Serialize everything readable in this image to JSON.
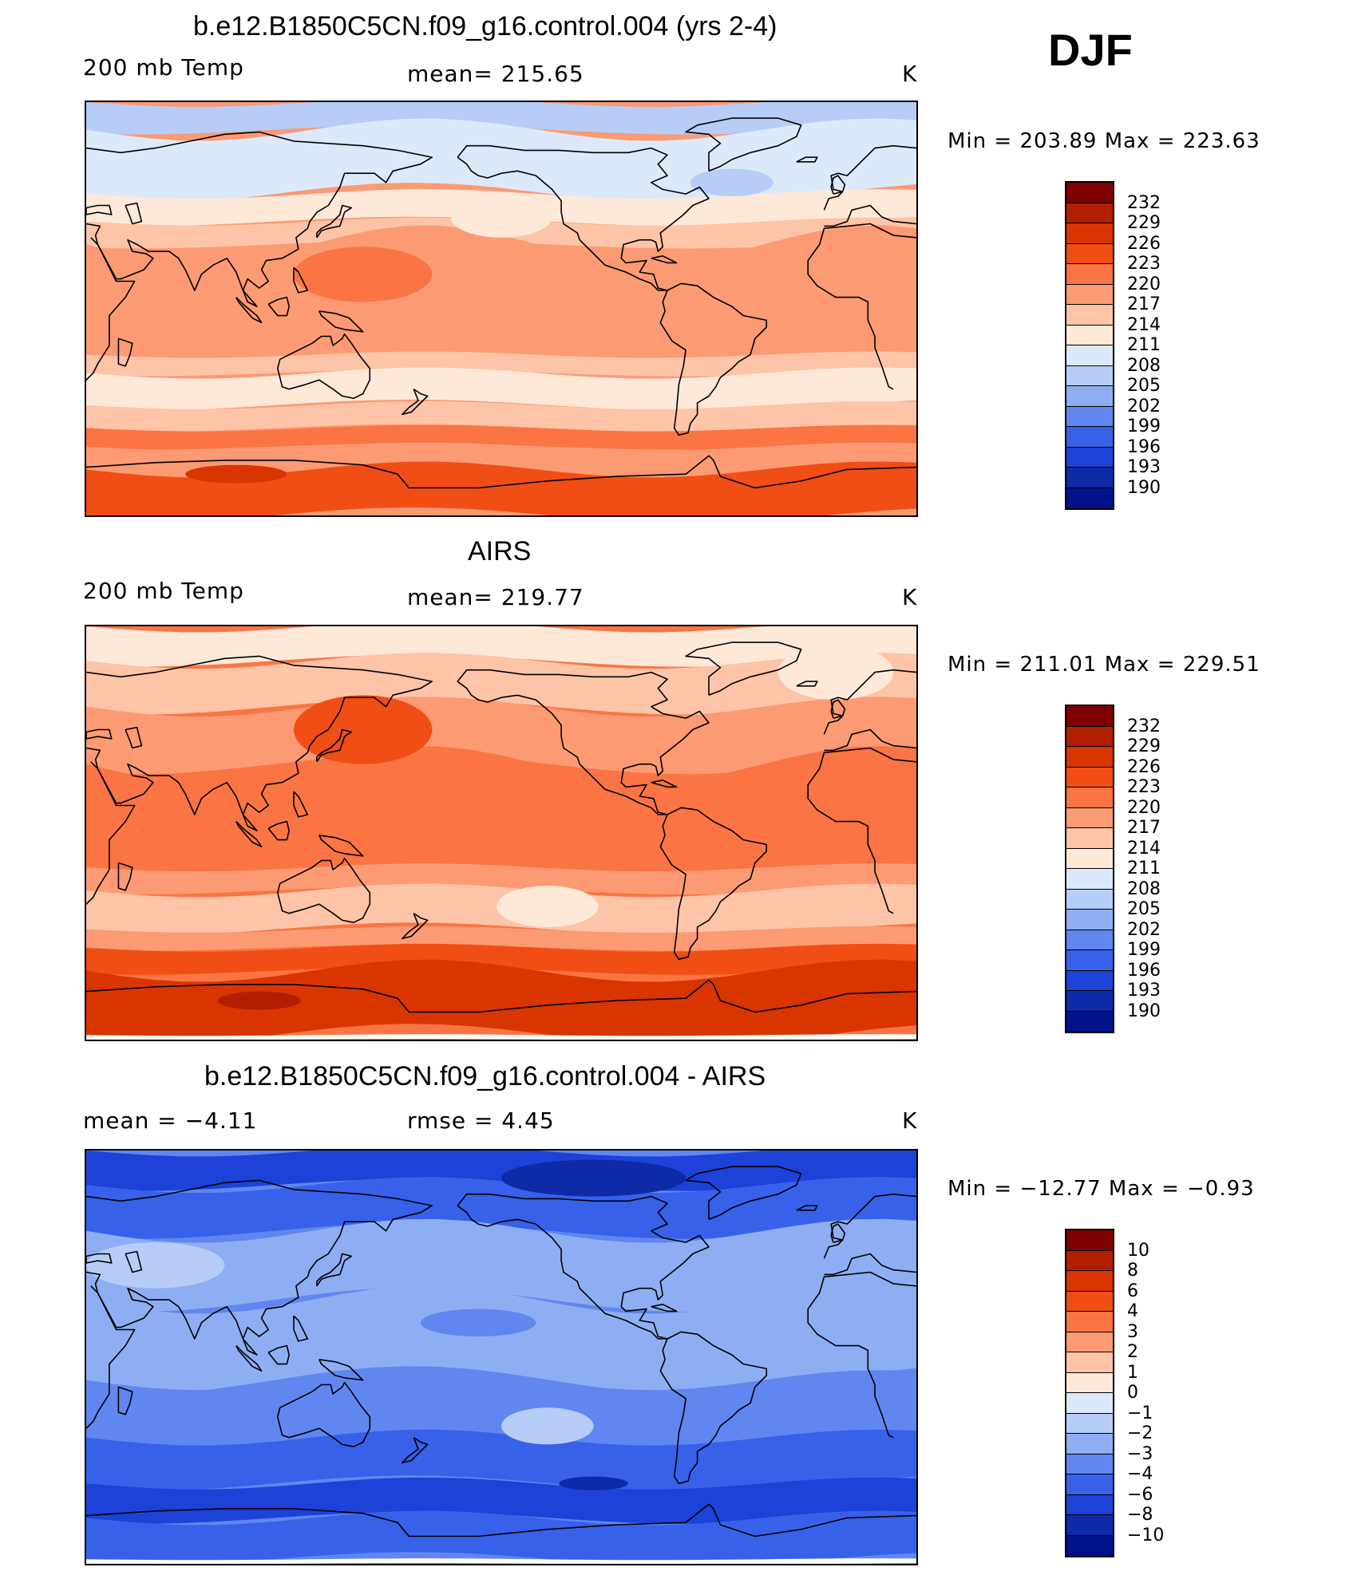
{
  "season": "DJF",
  "panels": [
    {
      "title": "b.e12.B1850C5CN.f09_g16.control.004 (yrs 2-4)",
      "left_label": "200 mb Temp",
      "center_label": "mean=  215.65",
      "units": "K",
      "minmax": "Min  =  203.89  Max  =  223.63",
      "colorbar": {
        "ticks": [
          "232",
          "229",
          "226",
          "223",
          "220",
          "217",
          "214",
          "211",
          "208",
          "205",
          "202",
          "199",
          "196",
          "193",
          "190"
        ],
        "colors": [
          "#7f0000",
          "#b21f00",
          "#d93500",
          "#f04e14",
          "#fa7543",
          "#fc9a74",
          "#fec4a8",
          "#fee9d9",
          "#dbe9fb",
          "#b7cdf7",
          "#8eaef3",
          "#6087ef",
          "#3861ea",
          "#1c42d8",
          "#0e2aa6",
          "#00128a"
        ]
      }
    },
    {
      "title": "AIRS",
      "left_label": "200 mb Temp",
      "center_label": "mean=  219.77",
      "units": "K",
      "minmax": "Min  =  211.01  Max  =  229.51",
      "colorbar": {
        "ticks": [
          "232",
          "229",
          "226",
          "223",
          "220",
          "217",
          "214",
          "211",
          "208",
          "205",
          "202",
          "199",
          "196",
          "193",
          "190"
        ],
        "colors": [
          "#7f0000",
          "#b21f00",
          "#d93500",
          "#f04e14",
          "#fa7543",
          "#fc9a74",
          "#fec4a8",
          "#fee9d9",
          "#dbe9fb",
          "#b7cdf7",
          "#8eaef3",
          "#6087ef",
          "#3861ea",
          "#1c42d8",
          "#0e2aa6",
          "#00128a"
        ]
      }
    },
    {
      "title": "b.e12.B1850C5CN.f09_g16.control.004 - AIRS",
      "left_label": "mean  =    −4.11",
      "center_label": "rmse  =     4.45",
      "units": "K",
      "minmax": "Min  =  −12.77  Max  =   −0.93",
      "colorbar": {
        "ticks": [
          "10",
          "8",
          "6",
          "4",
          "3",
          "2",
          "1",
          "0",
          "−1",
          "−2",
          "−3",
          "−4",
          "−6",
          "−8",
          "−10"
        ],
        "colors": [
          "#7f0000",
          "#b21f00",
          "#d93500",
          "#f04e14",
          "#fa7543",
          "#fc9a74",
          "#fec4a8",
          "#fee9d9",
          "#dbe9fb",
          "#b7cdf7",
          "#8eaef3",
          "#6087ef",
          "#3861ea",
          "#1c42d8",
          "#0e2aa6",
          "#00128a"
        ]
      }
    }
  ],
  "fields": {
    "model": {
      "background": "#fc9a74",
      "bands": [
        {
          "lat_top": 90,
          "lat_bottom": 78,
          "color": "#b7cdf7"
        },
        {
          "lat_top": 78,
          "lat_bottom": 50,
          "color": "#dbe9fb"
        },
        {
          "lat_top": 50,
          "lat_bottom": 38,
          "color": "#fee9d9"
        },
        {
          "lat_top": 38,
          "lat_bottom": 28,
          "color": "#fec4a8"
        },
        {
          "lat_top": 28,
          "lat_bottom": -20,
          "color": "#fc9a74"
        },
        {
          "lat_top": -20,
          "lat_bottom": -28,
          "color": "#fec4a8"
        },
        {
          "lat_top": -28,
          "lat_bottom": -42,
          "color": "#fee9d9"
        },
        {
          "lat_top": -42,
          "lat_bottom": -52,
          "color": "#fec4a8"
        },
        {
          "lat_top": -52,
          "lat_bottom": -60,
          "color": "#fa7543"
        },
        {
          "lat_top": -60,
          "lat_bottom": -70,
          "color": "#fc9a74"
        },
        {
          "lat_top": -70,
          "lat_bottom": -90,
          "color": "#f04e14"
        }
      ],
      "blobs": [
        {
          "lon": 210,
          "lat": 40,
          "rx": 22,
          "ry": 9,
          "color": "#fee9d9"
        },
        {
          "lon": 310,
          "lat": 55,
          "rx": 18,
          "ry": 6,
          "color": "#b7cdf7"
        },
        {
          "lon": 150,
          "lat": 15,
          "rx": 30,
          "ry": 12,
          "color": "#fa7543"
        },
        {
          "lon": 95,
          "lat": -72,
          "rx": 22,
          "ry": 4,
          "color": "#d93500"
        }
      ]
    },
    "obs": {
      "background": "#fa7543",
      "bands": [
        {
          "lat_top": 90,
          "lat_bottom": 75,
          "color": "#fee9d9"
        },
        {
          "lat_top": 75,
          "lat_bottom": 55,
          "color": "#fec4a8"
        },
        {
          "lat_top": 55,
          "lat_bottom": 30,
          "color": "#fc9a74"
        },
        {
          "lat_top": 30,
          "lat_bottom": -15,
          "color": "#fa7543"
        },
        {
          "lat_top": -15,
          "lat_bottom": -25,
          "color": "#fc9a74"
        },
        {
          "lat_top": -25,
          "lat_bottom": -42,
          "color": "#fec4a8"
        },
        {
          "lat_top": -42,
          "lat_bottom": -50,
          "color": "#fc9a74"
        },
        {
          "lat_top": -50,
          "lat_bottom": -60,
          "color": "#f04e14"
        },
        {
          "lat_top": -60,
          "lat_bottom": -88,
          "color": "#d93500"
        },
        {
          "lat_top": -88,
          "lat_bottom": -90,
          "color": "#ffffff"
        }
      ],
      "blobs": [
        {
          "lon": 150,
          "lat": 45,
          "rx": 30,
          "ry": 15,
          "color": "#f04e14"
        },
        {
          "lon": 230,
          "lat": -32,
          "rx": 22,
          "ry": 9,
          "color": "#fee9d9"
        },
        {
          "lon": 355,
          "lat": 70,
          "rx": 25,
          "ry": 12,
          "color": "#fee9d9"
        },
        {
          "lon": 105,
          "lat": -73,
          "rx": 18,
          "ry": 4,
          "color": "#b21f00"
        }
      ]
    },
    "diff": {
      "background": "#6087ef",
      "bands": [
        {
          "lat_top": 90,
          "lat_bottom": 75,
          "color": "#1c42d8"
        },
        {
          "lat_top": 75,
          "lat_bottom": 55,
          "color": "#3861ea"
        },
        {
          "lat_top": 55,
          "lat_bottom": 25,
          "color": "#8eaef3"
        },
        {
          "lat_top": 25,
          "lat_bottom": -10,
          "color": "#8eaef3"
        },
        {
          "lat_top": -10,
          "lat_bottom": -35,
          "color": "#6087ef"
        },
        {
          "lat_top": -35,
          "lat_bottom": -55,
          "color": "#3861ea"
        },
        {
          "lat_top": -55,
          "lat_bottom": -70,
          "color": "#1c42d8"
        },
        {
          "lat_top": -70,
          "lat_bottom": -88,
          "color": "#3861ea"
        },
        {
          "lat_top": -88,
          "lat_bottom": -90,
          "color": "#ffffff"
        }
      ],
      "blobs": [
        {
          "lon": 60,
          "lat": 40,
          "rx": 30,
          "ry": 10,
          "color": "#b7cdf7"
        },
        {
          "lon": 230,
          "lat": -30,
          "rx": 20,
          "ry": 8,
          "color": "#b7cdf7"
        },
        {
          "lon": 200,
          "lat": 15,
          "rx": 25,
          "ry": 6,
          "color": "#6087ef"
        },
        {
          "lon": 250,
          "lat": 78,
          "rx": 40,
          "ry": 8,
          "color": "#0e2aa6"
        },
        {
          "lon": 250,
          "lat": -55,
          "rx": 15,
          "ry": 3,
          "color": "#0e2aa6"
        }
      ]
    }
  }
}
